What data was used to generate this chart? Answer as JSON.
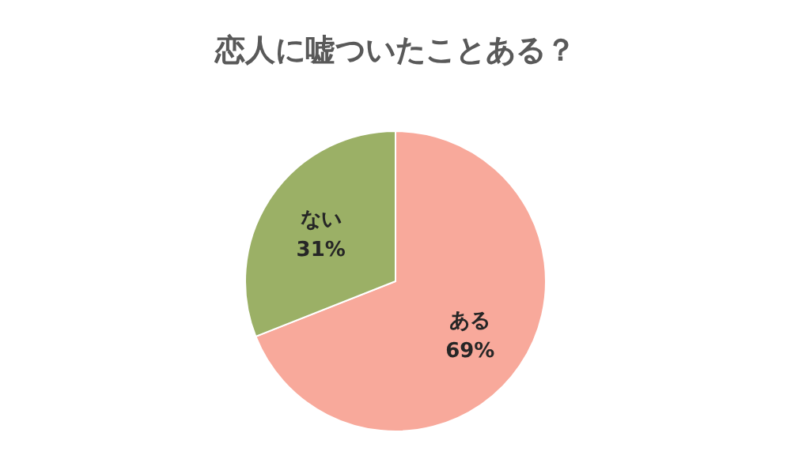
{
  "chart_data": {
    "type": "pie",
    "title": "恋人に嘘ついたことある？",
    "categories": [
      "ある",
      "ない"
    ],
    "values": [
      69,
      31
    ],
    "colors": [
      "#f8a99b",
      "#9bb066"
    ],
    "value_labels": [
      "69%",
      "31%"
    ]
  }
}
